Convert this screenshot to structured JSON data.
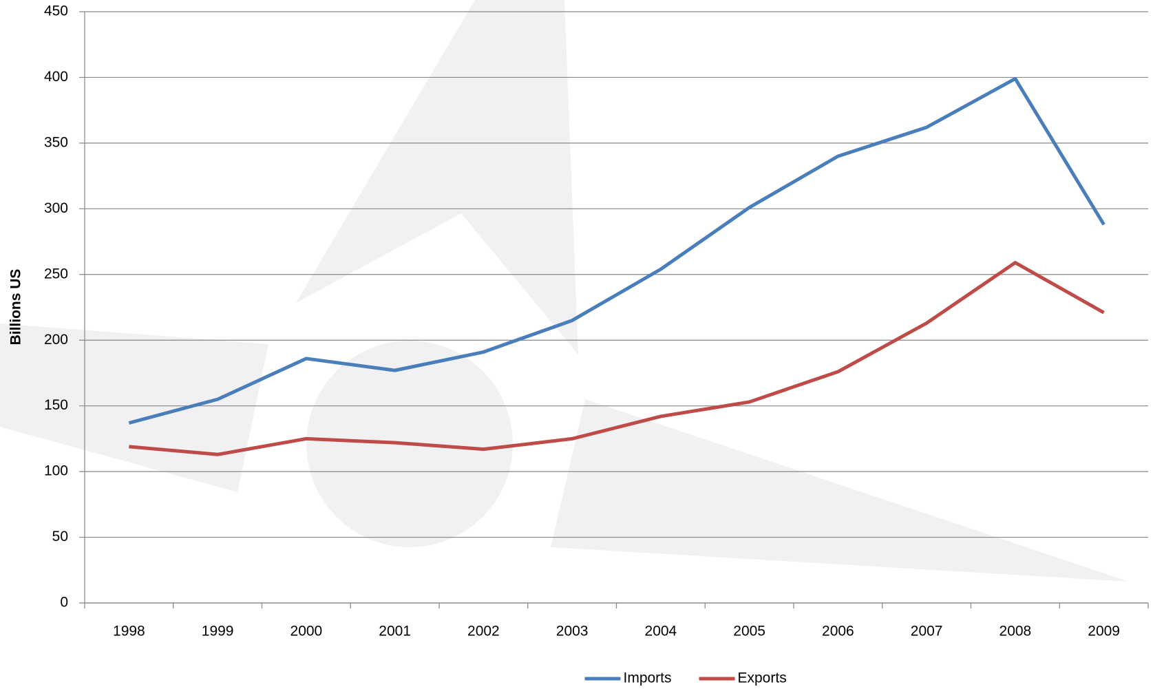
{
  "chart_data": {
    "type": "line",
    "y_label": "Billions US",
    "categories": [
      "1998",
      "1999",
      "2000",
      "2001",
      "2002",
      "2003",
      "2004",
      "2005",
      "2006",
      "2007",
      "2008",
      "2009"
    ],
    "series": [
      {
        "name": "Imports",
        "color": "#4a7ebb",
        "values": [
          137,
          155,
          186,
          177,
          191,
          215,
          254,
          301,
          340,
          362,
          399,
          288
        ]
      },
      {
        "name": "Exports",
        "color": "#be4b48",
        "values": [
          119,
          113,
          125,
          122,
          117,
          125,
          142,
          153,
          176,
          213,
          259,
          221
        ]
      }
    ],
    "ylim": [
      0,
      450
    ],
    "yticks": [
      0,
      50,
      100,
      150,
      200,
      250,
      300,
      350,
      400,
      450
    ],
    "grid": true,
    "legend": "bottom"
  }
}
